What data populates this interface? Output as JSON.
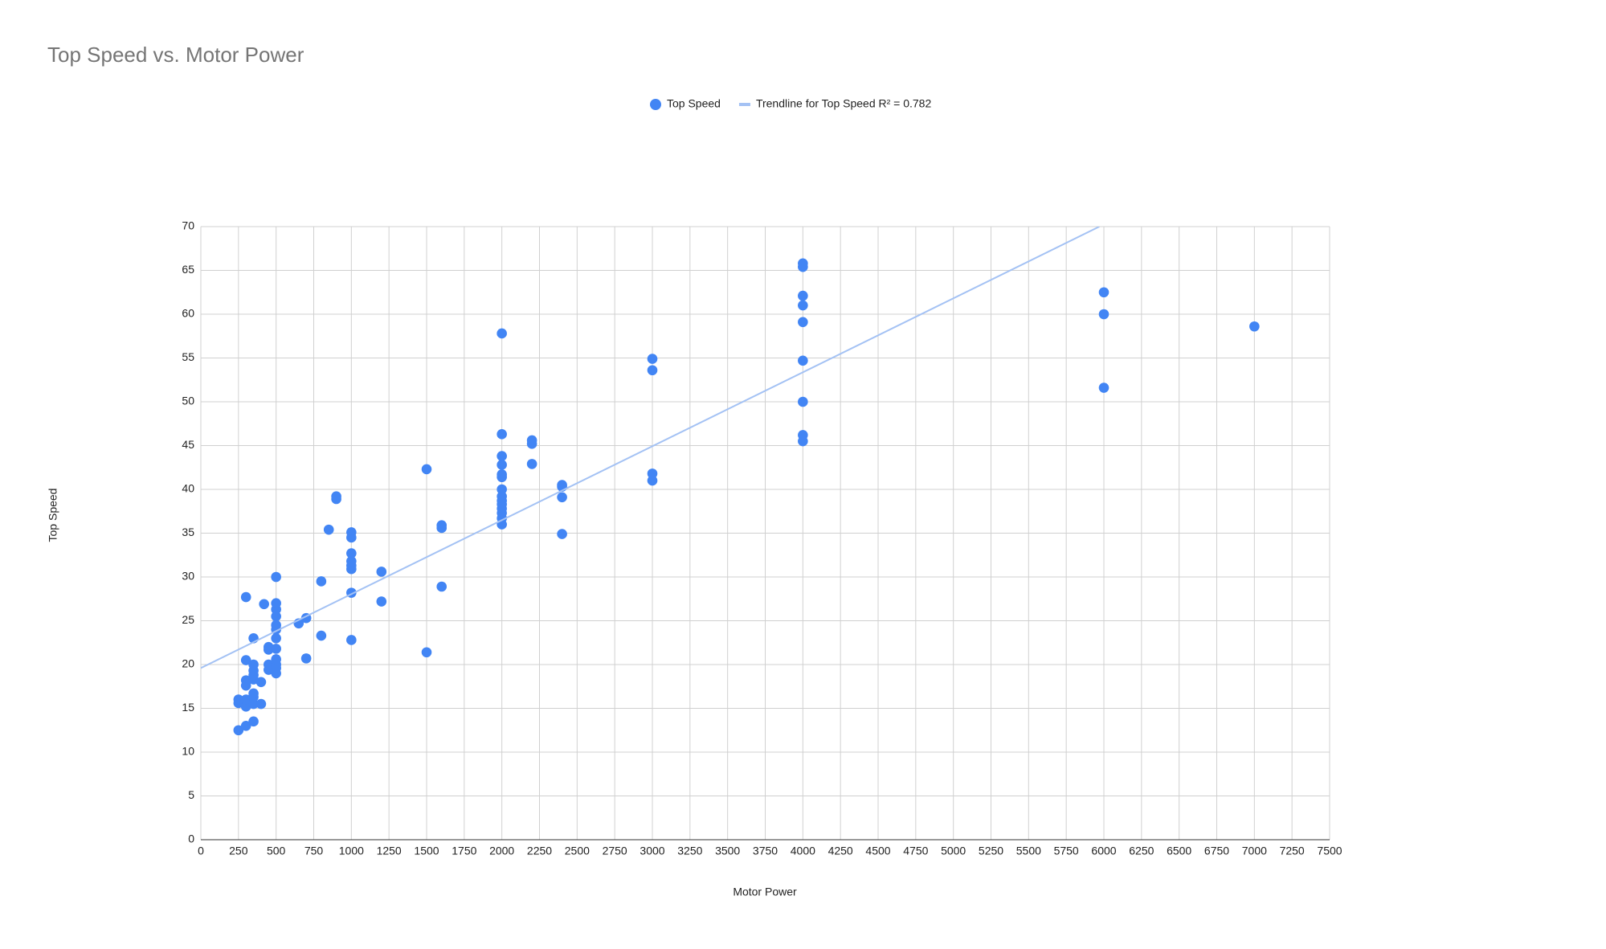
{
  "chart_data": {
    "type": "scatter",
    "title": "Top Speed vs. Motor Power",
    "x_label": "Motor Power",
    "y_label": "Top Speed",
    "series": [
      {
        "name": "Top Speed",
        "color": "#4285f4",
        "x": [
          250,
          250,
          250,
          300,
          300,
          300,
          300,
          300,
          300,
          300,
          350,
          350,
          350,
          350,
          350,
          350,
          350,
          350,
          350,
          400,
          400,
          420,
          450,
          450,
          450,
          450,
          500,
          500,
          500,
          500,
          500,
          500,
          500,
          500,
          500,
          500,
          500,
          500,
          650,
          700,
          700,
          800,
          800,
          850,
          900,
          900,
          1000,
          1000,
          1000,
          1000,
          1000,
          1000,
          1000,
          1000,
          1200,
          1200,
          1500,
          1500,
          1600,
          1600,
          1600,
          2000,
          2000,
          2000,
          2000,
          2000,
          2000,
          2000,
          2000,
          2000,
          2000,
          2000,
          2000,
          2000,
          2000,
          2200,
          2200,
          2200,
          2400,
          2400,
          2400,
          2400,
          3000,
          3000,
          3000,
          3000,
          4000,
          4000,
          4000,
          4000,
          4000,
          4000,
          4000,
          4000,
          4000,
          6000,
          6000,
          6000,
          7000
        ],
        "values": [
          12.5,
          15.6,
          16,
          13,
          15.2,
          16,
          17.6,
          18.2,
          20.5,
          27.7,
          13.5,
          15.5,
          16.3,
          16.7,
          18.3,
          18.8,
          19.3,
          20,
          23,
          15.5,
          18,
          26.9,
          19.4,
          20,
          21.7,
          22,
          19,
          19.6,
          20,
          20.6,
          21.8,
          23,
          24,
          24.5,
          25.5,
          26.3,
          27,
          30,
          24.7,
          20.7,
          25.3,
          23.3,
          29.5,
          35.4,
          38.9,
          39.2,
          22.8,
          28.2,
          30.9,
          31.3,
          31.8,
          32.7,
          34.5,
          35.1,
          27.2,
          30.6,
          21.4,
          42.3,
          28.9,
          35.6,
          35.9,
          36,
          36.7,
          37.3,
          37.8,
          38.3,
          38.7,
          39.2,
          40,
          41.4,
          41.7,
          42.8,
          43.8,
          46.3,
          57.8,
          42.9,
          45.2,
          45.6,
          34.9,
          39.1,
          40.3,
          40.5,
          41,
          41.8,
          53.6,
          54.9,
          45.5,
          46.2,
          50,
          54.7,
          59.1,
          61,
          62.1,
          65.4,
          65.8,
          51.6,
          60,
          62.5,
          58.6
        ]
      },
      {
        "name": "Trendline for Top Speed R² = 0.782",
        "color": "#a4c2f4",
        "trendline": true,
        "x": [
          0,
          5970
        ],
        "values": [
          19.6,
          70
        ]
      }
    ],
    "xlim": [
      0,
      7500
    ],
    "xticks": [
      0,
      250,
      500,
      750,
      1000,
      1250,
      1500,
      1750,
      2000,
      2250,
      2500,
      2750,
      3000,
      3250,
      3500,
      3750,
      4000,
      4250,
      4500,
      4750,
      5000,
      5250,
      5500,
      5750,
      6000,
      6250,
      6500,
      6750,
      7000,
      7250,
      7500
    ],
    "ylim": [
      0,
      70
    ],
    "yticks": [
      0,
      5,
      10,
      15,
      20,
      25,
      30,
      35,
      40,
      45,
      50,
      55,
      60,
      65,
      70
    ],
    "grid": true,
    "legend": "top"
  }
}
